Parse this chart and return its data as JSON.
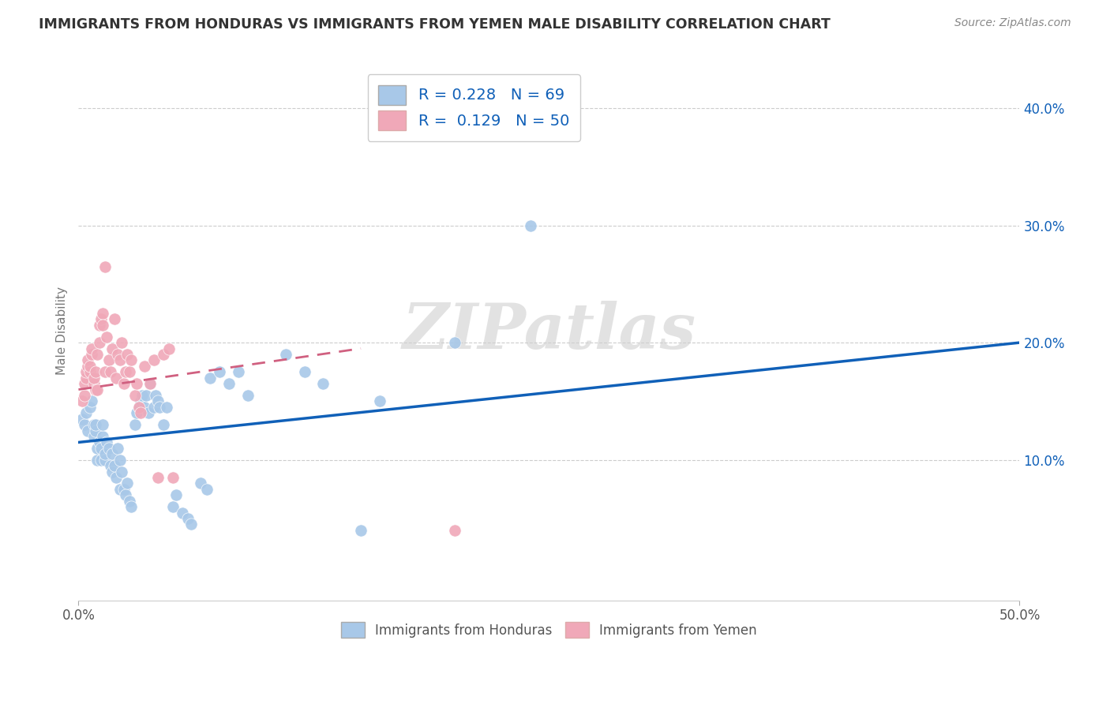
{
  "title": "IMMIGRANTS FROM HONDURAS VS IMMIGRANTS FROM YEMEN MALE DISABILITY CORRELATION CHART",
  "source": "Source: ZipAtlas.com",
  "ylabel": "Male Disability",
  "xlim": [
    0.0,
    0.5
  ],
  "ylim": [
    -0.02,
    0.44
  ],
  "plot_ylim": [
    -0.02,
    0.44
  ],
  "xticks": [
    0.0,
    0.5
  ],
  "xtick_labels": [
    "0.0%",
    "50.0%"
  ],
  "yticks": [
    0.1,
    0.2,
    0.3,
    0.4
  ],
  "ytick_labels": [
    "10.0%",
    "20.0%",
    "30.0%",
    "40.0%"
  ],
  "R_honduras": 0.228,
  "N_honduras": 69,
  "R_yemen": 0.129,
  "N_yemen": 50,
  "color_honduras": "#a8c8e8",
  "color_yemen": "#f0a8b8",
  "line_color_honduras": "#1060b8",
  "line_color_yemen": "#d06080",
  "background_color": "#ffffff",
  "grid_color": "#cccccc",
  "watermark": "ZIPatlas",
  "legend_label_honduras": "Immigrants from Honduras",
  "legend_label_yemen": "Immigrants from Yemen",
  "honduras_x": [
    0.002,
    0.003,
    0.004,
    0.005,
    0.006,
    0.007,
    0.008,
    0.008,
    0.009,
    0.009,
    0.01,
    0.01,
    0.011,
    0.012,
    0.012,
    0.013,
    0.013,
    0.014,
    0.014,
    0.015,
    0.016,
    0.017,
    0.018,
    0.018,
    0.019,
    0.02,
    0.021,
    0.022,
    0.022,
    0.023,
    0.024,
    0.025,
    0.026,
    0.027,
    0.028,
    0.03,
    0.031,
    0.032,
    0.033,
    0.034,
    0.035,
    0.036,
    0.037,
    0.038,
    0.04,
    0.041,
    0.042,
    0.043,
    0.045,
    0.047,
    0.05,
    0.052,
    0.055,
    0.058,
    0.06,
    0.065,
    0.068,
    0.07,
    0.075,
    0.08,
    0.085,
    0.09,
    0.11,
    0.12,
    0.13,
    0.15,
    0.16,
    0.2,
    0.24
  ],
  "honduras_y": [
    0.135,
    0.13,
    0.14,
    0.125,
    0.145,
    0.15,
    0.12,
    0.13,
    0.125,
    0.13,
    0.1,
    0.11,
    0.115,
    0.1,
    0.11,
    0.12,
    0.13,
    0.1,
    0.105,
    0.115,
    0.11,
    0.095,
    0.09,
    0.105,
    0.095,
    0.085,
    0.11,
    0.1,
    0.075,
    0.09,
    0.075,
    0.07,
    0.08,
    0.065,
    0.06,
    0.13,
    0.14,
    0.145,
    0.15,
    0.155,
    0.145,
    0.155,
    0.14,
    0.165,
    0.145,
    0.155,
    0.15,
    0.145,
    0.13,
    0.145,
    0.06,
    0.07,
    0.055,
    0.05,
    0.045,
    0.08,
    0.075,
    0.17,
    0.175,
    0.165,
    0.175,
    0.155,
    0.19,
    0.175,
    0.165,
    0.04,
    0.15,
    0.2,
    0.3
  ],
  "yemen_x": [
    0.002,
    0.003,
    0.003,
    0.004,
    0.004,
    0.005,
    0.005,
    0.006,
    0.006,
    0.007,
    0.007,
    0.008,
    0.008,
    0.009,
    0.009,
    0.01,
    0.01,
    0.011,
    0.011,
    0.012,
    0.013,
    0.013,
    0.014,
    0.014,
    0.015,
    0.016,
    0.017,
    0.018,
    0.019,
    0.02,
    0.021,
    0.022,
    0.023,
    0.024,
    0.025,
    0.026,
    0.027,
    0.028,
    0.03,
    0.031,
    0.032,
    0.033,
    0.035,
    0.038,
    0.04,
    0.042,
    0.045,
    0.048,
    0.05,
    0.2
  ],
  "yemen_y": [
    0.15,
    0.155,
    0.165,
    0.17,
    0.175,
    0.18,
    0.185,
    0.175,
    0.18,
    0.19,
    0.195,
    0.165,
    0.17,
    0.16,
    0.175,
    0.16,
    0.19,
    0.215,
    0.2,
    0.22,
    0.225,
    0.215,
    0.265,
    0.175,
    0.205,
    0.185,
    0.175,
    0.195,
    0.22,
    0.17,
    0.19,
    0.185,
    0.2,
    0.165,
    0.175,
    0.19,
    0.175,
    0.185,
    0.155,
    0.165,
    0.145,
    0.14,
    0.18,
    0.165,
    0.185,
    0.085,
    0.19,
    0.195,
    0.085,
    0.04
  ],
  "honduras_line_x": [
    0.0,
    0.5
  ],
  "honduras_line_y": [
    0.115,
    0.2
  ],
  "yemen_line_x": [
    0.0,
    0.15
  ],
  "yemen_line_y": [
    0.16,
    0.195
  ]
}
